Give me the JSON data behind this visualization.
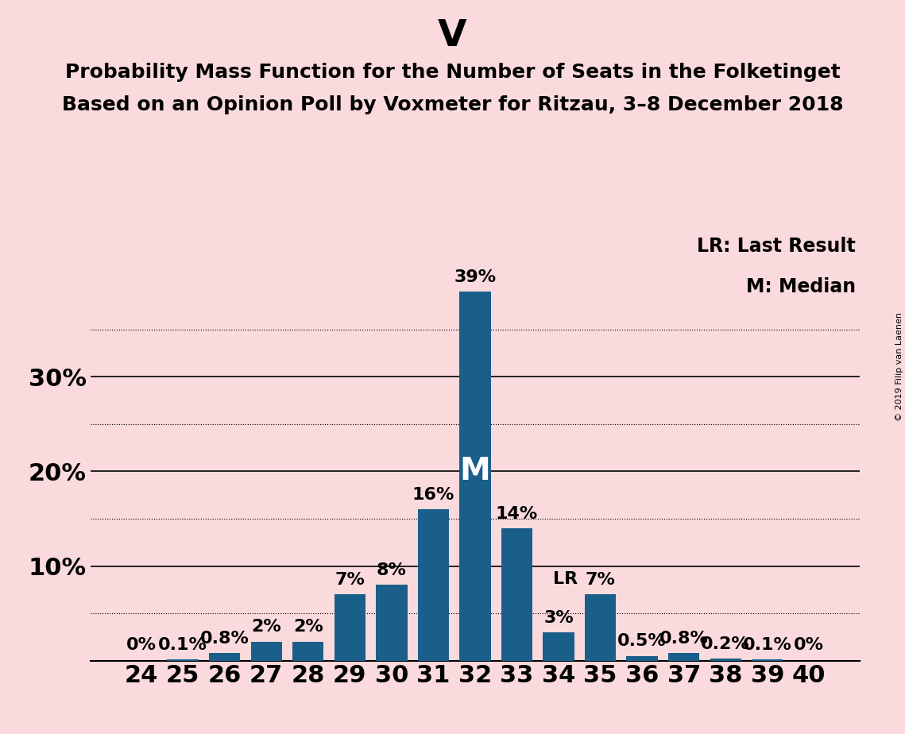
{
  "title_main": "V",
  "title_line1": "Probability Mass Function for the Number of Seats in the Folketinget",
  "title_line2": "Based on an Opinion Poll by Voxmeter for Ritzau, 3–8 December 2018",
  "categories": [
    24,
    25,
    26,
    27,
    28,
    29,
    30,
    31,
    32,
    33,
    34,
    35,
    36,
    37,
    38,
    39,
    40
  ],
  "values": [
    0.0,
    0.1,
    0.8,
    2.0,
    2.0,
    7.0,
    8.0,
    16.0,
    39.0,
    14.0,
    3.0,
    7.0,
    0.5,
    0.8,
    0.2,
    0.1,
    0.0
  ],
  "labels": [
    "0%",
    "0.1%",
    "0.8%",
    "2%",
    "2%",
    "7%",
    "8%",
    "16%",
    "39%",
    "14%",
    "3%",
    "7%",
    "0.5%",
    "0.8%",
    "0.2%",
    "0.1%",
    "0%"
  ],
  "bar_color": "#1a5f8a",
  "background_color": "#fadadd",
  "median_seat": 32,
  "last_result_seat": 35,
  "dotted_lines": [
    5,
    15,
    25,
    35
  ],
  "solid_lines": [
    10,
    20,
    30
  ],
  "legend_lr": "LR: Last Result",
  "legend_m": "M: Median",
  "copyright": "© 2019 Filip van Laenen",
  "title_fontsize": 34,
  "subtitle_fontsize": 18,
  "bar_label_fontsize": 16,
  "axis_label_fontsize": 22
}
